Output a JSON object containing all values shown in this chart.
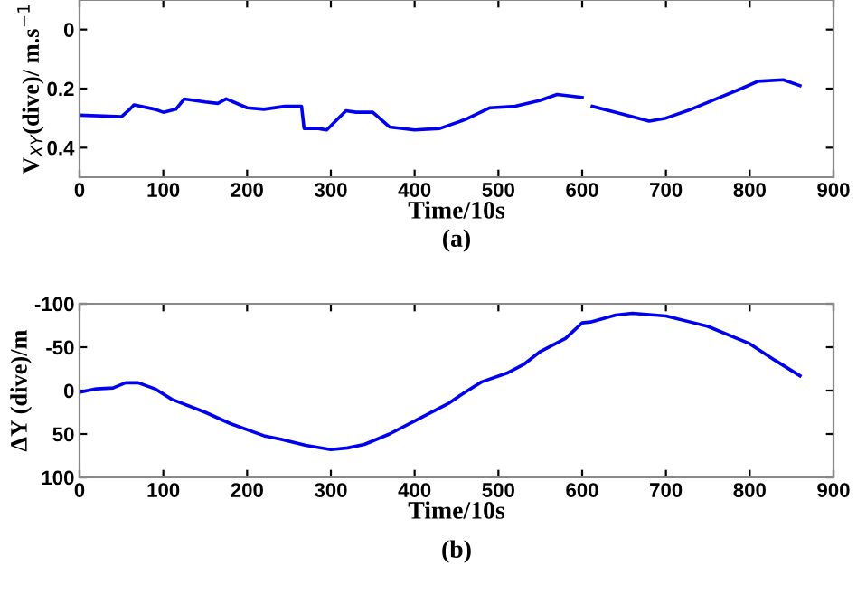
{
  "chart_data": [
    {
      "type": "line",
      "xlabel": "Time/10s",
      "ylabel": "V$_{XY}$(dive)/ m.s$^{−1}$",
      "annotations": [
        "(a)"
      ],
      "xlim": [
        0,
        900
      ],
      "xticks": [
        0,
        100,
        200,
        300,
        400,
        500,
        600,
        700,
        800,
        900
      ],
      "ylim": [
        0.5,
        -0.1
      ],
      "yticks": [
        0,
        0.2,
        0.4
      ],
      "grid": false,
      "legend": false,
      "x": [
        0,
        50,
        60,
        65,
        90,
        100,
        115,
        125,
        150,
        165,
        175,
        200,
        220,
        245,
        265,
        268,
        285,
        295,
        318,
        330,
        350,
        370,
        400,
        430,
        460,
        490,
        520,
        550,
        570,
        600,
        605,
        612,
        640,
        680,
        700,
        730,
        760,
        790,
        810,
        840,
        860
      ],
      "series": [
        {
          "color": "#0000ee",
          "values": [
            0.29,
            0.295,
            0.27,
            0.255,
            0.27,
            0.28,
            0.27,
            0.235,
            0.245,
            0.25,
            0.235,
            0.265,
            0.27,
            0.26,
            0.26,
            0.335,
            0.335,
            0.34,
            0.275,
            0.28,
            0.28,
            0.33,
            0.34,
            0.335,
            0.305,
            0.265,
            0.26,
            0.24,
            0.22,
            0.23,
            null,
            0.26,
            0.28,
            0.31,
            0.3,
            0.27,
            0.235,
            0.2,
            0.175,
            0.17,
            0.19
          ]
        }
      ]
    },
    {
      "type": "line",
      "xlabel": "Time/10s",
      "ylabel": "ΔY (dive)/m",
      "annotations": [
        "(b)"
      ],
      "xlim": [
        0,
        900
      ],
      "xticks": [
        0,
        100,
        200,
        300,
        400,
        500,
        600,
        700,
        800,
        900
      ],
      "ylim": [
        100,
        -100
      ],
      "yticks": [
        -100,
        -50,
        0,
        50,
        100
      ],
      "grid": false,
      "legend": false,
      "x": [
        0,
        20,
        40,
        55,
        70,
        90,
        110,
        150,
        180,
        220,
        240,
        270,
        300,
        320,
        340,
        370,
        400,
        440,
        460,
        480,
        510,
        530,
        550,
        580,
        600,
        610,
        640,
        660,
        700,
        750,
        800,
        830,
        860
      ],
      "series": [
        {
          "color": "#0000ee",
          "values": [
            2,
            -2,
            -3,
            -9,
            -9,
            -2,
            10,
            25,
            38,
            52,
            56,
            63,
            68,
            66,
            62,
            50,
            35,
            15,
            2,
            -10,
            -20,
            -30,
            -45,
            -60,
            -78,
            -79,
            -87,
            -89,
            -86,
            -74,
            -54,
            -35,
            -17
          ]
        }
      ]
    }
  ]
}
